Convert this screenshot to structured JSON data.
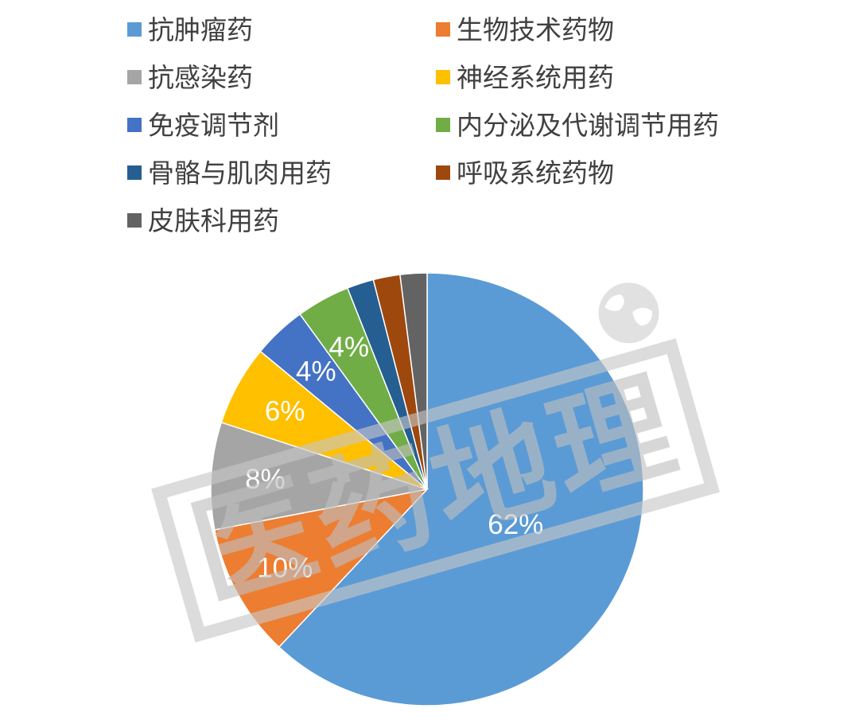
{
  "chart_data": {
    "type": "pie",
    "title": "",
    "legend_position": "top",
    "categories": [
      "抗肿瘤药",
      "生物技术药物",
      "抗感染药",
      "神经系统用药",
      "免疫调节剂",
      "内分泌及代谢调节用药",
      "骨骼与肌肉用药",
      "呼吸系统药物",
      "皮肤科用药"
    ],
    "values": [
      62,
      10,
      8,
      6,
      4,
      4,
      2,
      2,
      2
    ],
    "data_labels": [
      "62%",
      "10%",
      "8%",
      "6%",
      "4%",
      "4%",
      "",
      "",
      ""
    ],
    "colors": [
      "#5b9bd5",
      "#ed7d31",
      "#a5a5a5",
      "#ffc000",
      "#4472c4",
      "#70ad47",
      "#255e91",
      "#9e480e",
      "#636363"
    ]
  },
  "watermark": {
    "text": "医药地理",
    "icon": "globe-icon"
  }
}
